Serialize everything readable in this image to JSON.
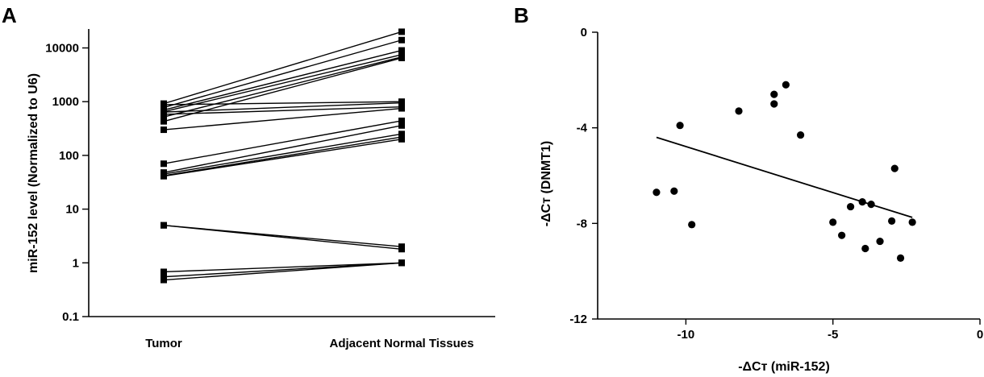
{
  "chart_data": [
    {
      "panel": "A",
      "type": "line",
      "categories": [
        "Tumor",
        "Adjacent Normal Tissues"
      ],
      "ylabel": "miR-152 level  (Normalized to U6)",
      "yscale": "log",
      "ylim": [
        0.1,
        25000
      ],
      "yticks": [
        "0.1",
        "1",
        "10",
        "100",
        "1000",
        "10000"
      ],
      "pairs": [
        [
          920,
          20000
        ],
        [
          780,
          14000
        ],
        [
          700,
          9000
        ],
        [
          650,
          7500
        ],
        [
          520,
          6800
        ],
        [
          430,
          6500
        ],
        [
          880,
          1000
        ],
        [
          640,
          950
        ],
        [
          580,
          800
        ],
        [
          300,
          750
        ],
        [
          70,
          440
        ],
        [
          48,
          360
        ],
        [
          45,
          250
        ],
        [
          42,
          220
        ],
        [
          41,
          200
        ],
        [
          5.0,
          2.0
        ],
        [
          5.0,
          1.8
        ],
        [
          0.68,
          1.0
        ],
        [
          0.55,
          1.0
        ],
        [
          0.48,
          1.0
        ]
      ]
    },
    {
      "panel": "B",
      "type": "scatter",
      "xlabel": "-ΔCт  (miR-152)",
      "ylabel": "-ΔCт  (DNMT1)",
      "xlim": [
        -13,
        0
      ],
      "ylim": [
        -12,
        0
      ],
      "xticks": [
        "-10",
        "-5",
        "0"
      ],
      "yticks": [
        "0",
        "-4",
        "-8",
        "-12"
      ],
      "points": [
        [
          -6.6,
          -2.2
        ],
        [
          -7.0,
          -2.6
        ],
        [
          -7.0,
          -3.0
        ],
        [
          -8.2,
          -3.3
        ],
        [
          -10.2,
          -3.9
        ],
        [
          -6.1,
          -4.3
        ],
        [
          -11.0,
          -6.7
        ],
        [
          -10.4,
          -6.65
        ],
        [
          -9.8,
          -8.05
        ],
        [
          -2.9,
          -5.7
        ],
        [
          -4.0,
          -7.1
        ],
        [
          -3.7,
          -7.2
        ],
        [
          -4.4,
          -7.3
        ],
        [
          -5.0,
          -7.95
        ],
        [
          -3.0,
          -7.9
        ],
        [
          -2.3,
          -7.95
        ],
        [
          -4.7,
          -8.5
        ],
        [
          -3.4,
          -8.75
        ],
        [
          -3.9,
          -9.05
        ],
        [
          -2.7,
          -9.45
        ]
      ],
      "trendline": [
        [
          -11.0,
          -4.4
        ],
        [
          -2.3,
          -7.75
        ]
      ]
    }
  ]
}
